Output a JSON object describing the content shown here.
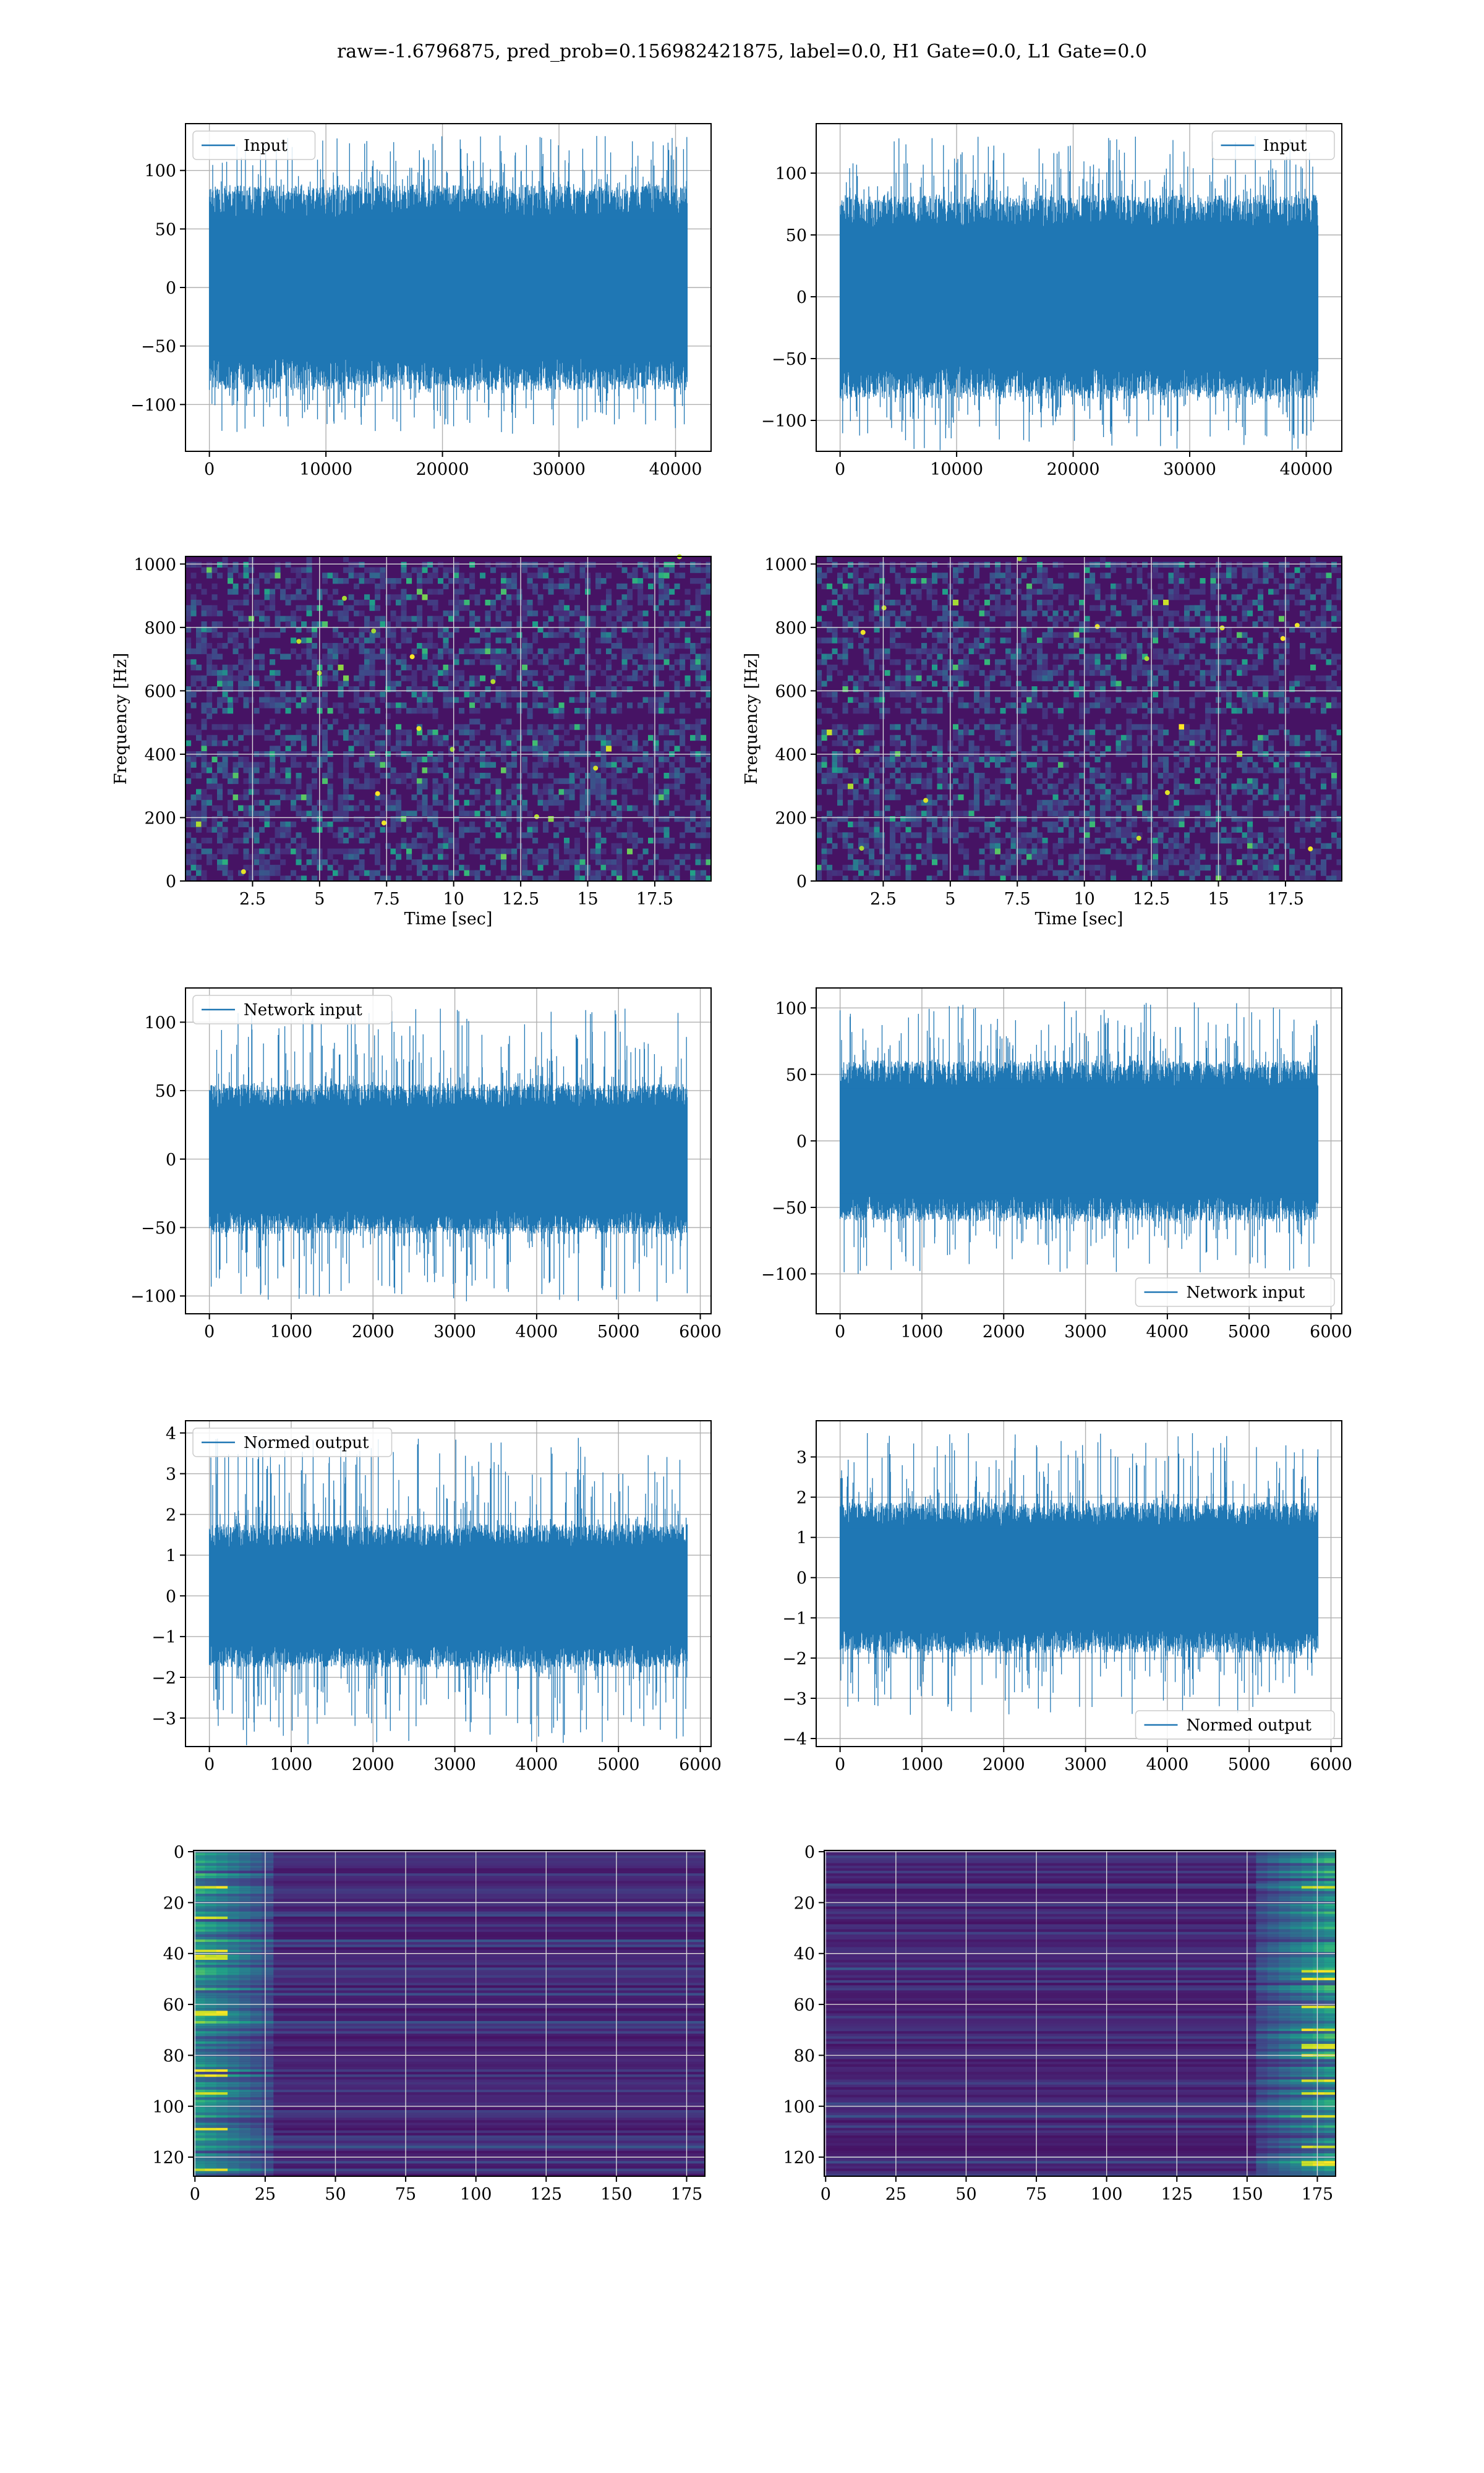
{
  "figure_title": "raw=-1.6796875, pred_prob=0.156982421875, label=0.0, H1 Gate=0.0, L1 Gate=0.0",
  "colors": {
    "series": "#1f77b4",
    "grid": "#b0b0b0",
    "heat_low": "#440154",
    "heat_high": "#fde725"
  },
  "chart_data": [
    {
      "id": "input-h1",
      "type": "line",
      "series": [
        {
          "name": "Input",
          "amplitude": 80,
          "spike_max": 130
        }
      ],
      "x": [
        0,
        41000
      ],
      "xlim": [
        -2050,
        43050
      ],
      "ylim": [
        -140,
        140
      ],
      "xticks": [
        0,
        10000,
        20000,
        30000,
        40000
      ],
      "yticks": [
        -100,
        -50,
        0,
        50,
        100
      ],
      "legend": "upper left",
      "grid": true,
      "xlabel": "",
      "ylabel": ""
    },
    {
      "id": "input-l1",
      "type": "line",
      "series": [
        {
          "name": "Input",
          "amplitude": 75,
          "spike_max": 130
        }
      ],
      "x": [
        0,
        41000
      ],
      "xlim": [
        -2050,
        43050
      ],
      "ylim": [
        -125,
        140
      ],
      "xticks": [
        0,
        10000,
        20000,
        30000,
        40000
      ],
      "yticks": [
        -100,
        -50,
        0,
        50,
        100
      ],
      "legend": "upper right",
      "grid": true,
      "xlabel": "",
      "ylabel": ""
    },
    {
      "id": "spectrogram-h1",
      "type": "heatmap",
      "xlim": [
        0,
        19.6
      ],
      "ylim": [
        0,
        1024
      ],
      "xticks": [
        2.5,
        5.0,
        7.5,
        10.0,
        12.5,
        15.0,
        17.5
      ],
      "yticks": [
        0,
        200,
        400,
        600,
        800,
        1000
      ],
      "xlabel": "Time [sec]",
      "ylabel": "Frequency [Hz]",
      "grid": true
    },
    {
      "id": "spectrogram-l1",
      "type": "heatmap",
      "xlim": [
        0,
        19.6
      ],
      "ylim": [
        0,
        1024
      ],
      "xticks": [
        2.5,
        5.0,
        7.5,
        10.0,
        12.5,
        15.0,
        17.5
      ],
      "yticks": [
        0,
        200,
        400,
        600,
        800,
        1000
      ],
      "xlabel": "Time [sec]",
      "ylabel": "Frequency [Hz]",
      "grid": true
    },
    {
      "id": "network-input-h1",
      "type": "line",
      "series": [
        {
          "name": "Network input",
          "amplitude": 50,
          "spike_max": 110
        }
      ],
      "x": [
        0,
        5840
      ],
      "xlim": [
        -292,
        6132
      ],
      "ylim": [
        -113,
        125
      ],
      "xticks": [
        0,
        1000,
        2000,
        3000,
        4000,
        5000,
        6000
      ],
      "yticks": [
        -100,
        -50,
        0,
        50,
        100
      ],
      "legend": "upper left",
      "grid": true,
      "xlabel": "",
      "ylabel": ""
    },
    {
      "id": "network-input-l1",
      "type": "line",
      "series": [
        {
          "name": "Network input",
          "amplitude": 55,
          "spike_max": 105
        }
      ],
      "x": [
        0,
        5840
      ],
      "xlim": [
        -292,
        6132
      ],
      "ylim": [
        -130,
        115
      ],
      "xticks": [
        0,
        1000,
        2000,
        3000,
        4000,
        5000,
        6000
      ],
      "yticks": [
        -100,
        -50,
        0,
        50,
        100
      ],
      "legend": "lower right",
      "grid": true,
      "xlabel": "",
      "ylabel": ""
    },
    {
      "id": "normed-output-h1",
      "type": "line",
      "series": [
        {
          "name": "Normed output",
          "amplitude": 1.6,
          "spike_max": 3.9
        }
      ],
      "x": [
        0,
        5840
      ],
      "xlim": [
        -292,
        6132
      ],
      "ylim": [
        -3.7,
        4.3
      ],
      "xticks": [
        0,
        1000,
        2000,
        3000,
        4000,
        5000,
        6000
      ],
      "yticks": [
        -3,
        -2,
        -1,
        0,
        1,
        2,
        3,
        4
      ],
      "legend": "upper left",
      "grid": true,
      "xlabel": "",
      "ylabel": ""
    },
    {
      "id": "normed-output-l1",
      "type": "line",
      "series": [
        {
          "name": "Normed output",
          "amplitude": 1.7,
          "spike_max": 3.6
        }
      ],
      "x": [
        0,
        5840
      ],
      "xlim": [
        -292,
        6132
      ],
      "ylim": [
        -4.2,
        3.9
      ],
      "xticks": [
        0,
        1000,
        2000,
        3000,
        4000,
        5000,
        6000
      ],
      "yticks": [
        -4,
        -3,
        -2,
        -1,
        0,
        1,
        2,
        3
      ],
      "legend": "lower right",
      "grid": true,
      "xlabel": "",
      "ylabel": ""
    },
    {
      "id": "features-h1",
      "type": "heatmap",
      "xlim": [
        -0.5,
        181.5
      ],
      "ylim": [
        127.5,
        -0.5
      ],
      "xticks": [
        0,
        25,
        50,
        75,
        100,
        125,
        150,
        175
      ],
      "yticks": [
        0,
        20,
        40,
        60,
        80,
        100,
        120
      ],
      "hot_region": "left",
      "grid": true,
      "xlabel": "",
      "ylabel": ""
    },
    {
      "id": "features-l1",
      "type": "heatmap",
      "xlim": [
        -0.5,
        181.5
      ],
      "ylim": [
        127.5,
        -0.5
      ],
      "xticks": [
        0,
        25,
        50,
        75,
        100,
        125,
        150,
        175
      ],
      "yticks": [
        0,
        20,
        40,
        60,
        80,
        100,
        120
      ],
      "hot_region": "right",
      "grid": true,
      "xlabel": "",
      "ylabel": ""
    }
  ]
}
